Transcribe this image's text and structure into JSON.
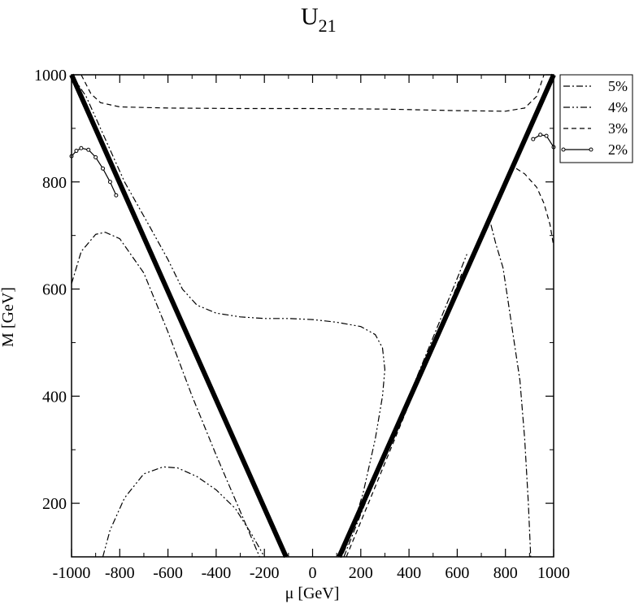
{
  "chart_data": {
    "type": "line",
    "title": {
      "base": "U",
      "subscript": "21"
    },
    "xlabel": "μ [GeV]",
    "ylabel": "M [GeV]",
    "xlim": [
      -1000,
      1000
    ],
    "ylim": [
      100,
      1000
    ],
    "xticks": [
      -1000,
      -800,
      -600,
      -400,
      -200,
      0,
      200,
      400,
      600,
      800,
      1000
    ],
    "xtick_labels": [
      "-1000",
      "-800",
      "-600",
      "-400",
      "-200",
      "0",
      "200",
      "400",
      "600",
      "800",
      "1000"
    ],
    "yticks": [
      200,
      400,
      600,
      800,
      1000
    ],
    "ytick_labels": [
      "200",
      "400",
      "600",
      "800",
      "1000"
    ],
    "grid": false,
    "legend_position": "outside-top-right",
    "legend": [
      {
        "label": "5%",
        "dash": "8,3,2,3"
      },
      {
        "label": "4%",
        "dash": "8,3,2,3,2,3"
      },
      {
        "label": "3%",
        "dash": "6,4"
      },
      {
        "label": "2%",
        "dash": "none",
        "markers": true
      }
    ],
    "boundaries": [
      {
        "name": "left-boundary",
        "points": [
          [
            -1000,
            1000
          ],
          [
            -110,
            100
          ]
        ]
      },
      {
        "name": "right-boundary",
        "points": [
          [
            110,
            100
          ],
          [
            1000,
            1000
          ]
        ]
      }
    ],
    "series": [
      {
        "legend_index": 0,
        "segments": [
          [
            [
              -1000,
              610
            ],
            [
              -960,
              670
            ],
            [
              -900,
              702
            ],
            [
              -860,
              706
            ],
            [
              -800,
              694
            ],
            [
              -700,
              630
            ],
            [
              -600,
              520
            ],
            [
              -500,
              400
            ],
            [
              -400,
              290
            ],
            [
              -300,
              185
            ],
            [
              -220,
              100
            ]
          ],
          [
            [
              130,
              100
            ],
            [
              200,
              180
            ],
            [
              300,
              290
            ],
            [
              400,
              400
            ],
            [
              500,
              510
            ],
            [
              600,
              620
            ],
            [
              640,
              665
            ]
          ],
          [
            [
              740,
              720
            ],
            [
              760,
              685
            ],
            [
              790,
              640
            ],
            [
              810,
              580
            ],
            [
              830,
              520
            ],
            [
              860,
              430
            ],
            [
              880,
              320
            ],
            [
              895,
              200
            ],
            [
              905,
              100
            ]
          ]
        ]
      },
      {
        "legend_index": 1,
        "segments": [
          [
            [
              -1000,
              1000
            ],
            [
              -940,
              960
            ],
            [
              -880,
              900
            ],
            [
              -780,
              800
            ],
            [
              -680,
              720
            ],
            [
              -600,
              655
            ],
            [
              -540,
              600
            ],
            [
              -480,
              570
            ],
            [
              -400,
              555
            ],
            [
              -300,
              548
            ],
            [
              -200,
              545
            ],
            [
              -100,
              545
            ],
            [
              0,
              543
            ],
            [
              100,
              538
            ],
            [
              200,
              530
            ],
            [
              260,
              515
            ],
            [
              290,
              490
            ],
            [
              300,
              450
            ],
            [
              290,
              400
            ],
            [
              260,
              320
            ],
            [
              210,
              220
            ],
            [
              150,
              130
            ],
            [
              120,
              100
            ]
          ],
          [
            [
              -870,
              100
            ],
            [
              -840,
              150
            ],
            [
              -780,
              210
            ],
            [
              -700,
              255
            ],
            [
              -620,
              268
            ],
            [
              -560,
              266
            ],
            [
              -480,
              250
            ],
            [
              -400,
              225
            ],
            [
              -320,
              190
            ],
            [
              -250,
              140
            ],
            [
              -200,
              100
            ]
          ]
        ]
      },
      {
        "legend_index": 2,
        "segments": [
          [
            [
              -960,
              1000
            ],
            [
              -920,
              965
            ],
            [
              -880,
              948
            ],
            [
              -800,
              940
            ],
            [
              -600,
              938
            ],
            [
              -300,
              937
            ],
            [
              0,
              937
            ],
            [
              300,
              936
            ],
            [
              600,
              933
            ],
            [
              800,
              932
            ],
            [
              880,
              938
            ],
            [
              930,
              960
            ],
            [
              960,
              1000
            ]
          ],
          [
            [
              140,
              100
            ],
            [
              250,
              220
            ],
            [
              350,
              330
            ],
            [
              450,
              440
            ],
            [
              550,
              550
            ],
            [
              620,
              630
            ]
          ],
          [
            [
              845,
              825
            ],
            [
              880,
              815
            ],
            [
              930,
              790
            ],
            [
              960,
              760
            ],
            [
              985,
              720
            ],
            [
              1000,
              680
            ]
          ]
        ]
      },
      {
        "legend_index": 3,
        "segments": [
          [
            [
              -1000,
              848
            ],
            [
              -980,
              858
            ],
            [
              -960,
              863
            ],
            [
              -930,
              860
            ],
            [
              -900,
              846
            ],
            [
              -870,
              825
            ],
            [
              -840,
              800
            ],
            [
              -815,
              775
            ]
          ],
          [
            [
              915,
              880
            ],
            [
              945,
              888
            ],
            [
              970,
              886
            ],
            [
              1000,
              865
            ]
          ]
        ]
      }
    ]
  }
}
